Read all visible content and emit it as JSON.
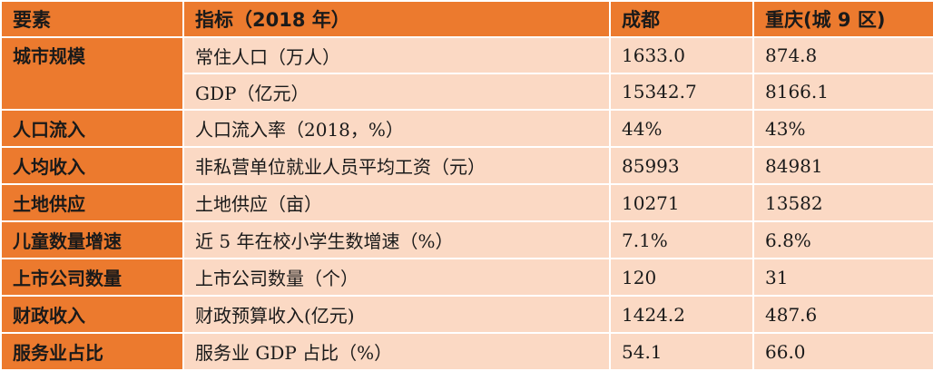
{
  "header": {
    "col1": "要素",
    "col2": "指标（2018 年）",
    "col3": "成都",
    "col4": "重庆(城 9 区)"
  },
  "rows": [
    {
      "factor": "城市规模",
      "indicator": "常住人口（万人）",
      "chengdu": "1633.0",
      "chongqing": "874.8"
    },
    {
      "factor": "",
      "indicator": "GDP（亿元）",
      "chengdu": "15342.7",
      "chongqing": "8166.1"
    },
    {
      "factor": "人口流入",
      "indicator": "人口流入率（2018，%）",
      "chengdu": "44%",
      "chongqing": "43%"
    },
    {
      "factor": "人均收入",
      "indicator": "非私营单位就业人员平均工资（元）",
      "chengdu": "85993",
      "chongqing": "84981"
    },
    {
      "factor": "土地供应",
      "indicator": "土地供应（亩）",
      "chengdu": "10271",
      "chongqing": "13582"
    },
    {
      "factor": "儿童数量增速",
      "indicator": "近 5 年在校小学生数增速（%）",
      "chengdu": "7.1%",
      "chongqing": "6.8%"
    },
    {
      "factor": "上市公司数量",
      "indicator": "上市公司数量（个）",
      "chengdu": "120",
      "chongqing": "31"
    },
    {
      "factor": "财政收入",
      "indicator": "财政预算收入(亿元)",
      "chengdu": "1424.2",
      "chongqing": "487.6"
    },
    {
      "factor": "服务业占比",
      "indicator": "服务业 GDP 占比（%）",
      "chengdu": "54.1",
      "chongqing": "66.0"
    }
  ],
  "colors": {
    "header_bg": "#ec7a2e",
    "cell_bg": "#fbd9c4",
    "border": "#ffffff"
  }
}
